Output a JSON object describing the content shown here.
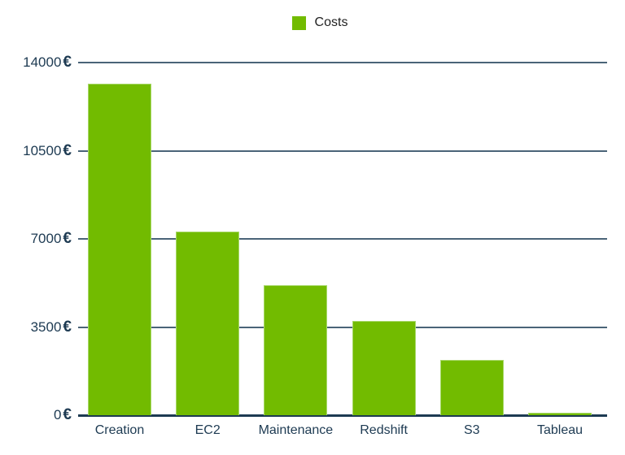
{
  "chart_data": {
    "type": "bar",
    "title": "",
    "xlabel": "",
    "ylabel": "",
    "categories": [
      "Creation",
      "EC2",
      "Maintenance",
      "Redshift",
      "S3",
      "Tableau"
    ],
    "series": [
      {
        "name": "Costs",
        "color": "#72bb00",
        "values": [
          13150,
          7300,
          5150,
          3750,
          2200,
          100
        ]
      }
    ],
    "ylim": [
      0,
      14000
    ],
    "yticks": [
      0,
      3500,
      7000,
      10500,
      14000
    ],
    "ytick_labels": [
      "0",
      "3500",
      "7000",
      "10500",
      "14000"
    ],
    "ytick_unit": "€",
    "grid": true,
    "legend_position": "top"
  },
  "legend": {
    "label": "Costs",
    "color": "#72bb00"
  }
}
